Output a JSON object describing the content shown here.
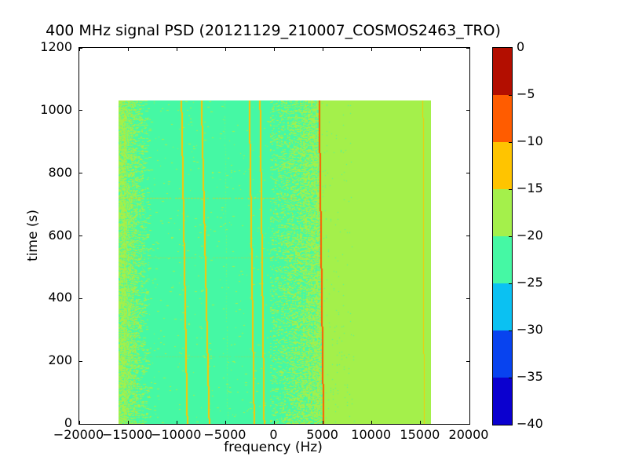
{
  "title": "400 MHz signal PSD (20121129_210007_COSMOS2463_TRO)",
  "chart_data": {
    "type": "heatmap",
    "subtype": "spectrogram",
    "title": "400 MHz signal PSD (20121129_210007_COSMOS2463_TRO)",
    "xlabel": "frequency (Hz)",
    "ylabel": "time (s)",
    "xlim": [
      -20000,
      20000
    ],
    "ylim": [
      0,
      1200
    ],
    "grid": false,
    "xticks": {
      "values": [
        -20000,
        -15000,
        -10000,
        -5000,
        0,
        5000,
        10000,
        15000,
        20000
      ],
      "labels": [
        "−20000",
        "−15000",
        "−10000",
        "−5000",
        "0",
        "5000",
        "10000",
        "15000",
        "20000"
      ]
    },
    "yticks": {
      "values": [
        0,
        200,
        400,
        600,
        800,
        1000,
        1200
      ],
      "labels": [
        "0",
        "200",
        "400",
        "600",
        "800",
        "1000",
        "1200"
      ]
    },
    "colorbar": {
      "position": "right",
      "tick_labels": [
        "0",
        "−5",
        "−10",
        "−15",
        "−20",
        "−25",
        "−30",
        "−35",
        "−40"
      ],
      "tick_values": [
        0,
        -5,
        -10,
        -15,
        -20,
        -25,
        -30,
        -35,
        -40
      ],
      "segment_colors": [
        "#b30e00",
        "#ff5c00",
        "#ffc400",
        "#a4f04b",
        "#45f8a4",
        "#0bc1f2",
        "#0843ef",
        "#0b00cf"
      ]
    },
    "data_extent": {
      "freq": [
        -16000,
        16000
      ],
      "time": [
        0,
        1032
      ]
    },
    "background": {
      "left_level_db": -22,
      "right_level_db": -17,
      "boundary_follows": "carrier-line"
    },
    "noise_bands": [
      {
        "name": "left-edge-band",
        "style": "solid",
        "f_from": -16000,
        "f_to": -15400,
        "level_db": -17,
        "gap_density": 0.18
      },
      {
        "name": "left-noise-band",
        "style": "streaks",
        "f_from": -15400,
        "f_to": -12700,
        "level_db": -17,
        "density_start": 0.92,
        "density_end": 0.04
      },
      {
        "name": "sparse-speckle",
        "style": "speckle",
        "f_from": -12700,
        "f_to": -500,
        "level_db": -17,
        "density_start": 0.012,
        "density_end": 0.012
      },
      {
        "name": "center-noise-band",
        "style": "speckle",
        "f_from": -500,
        "f_to": 5000,
        "level_db": -17,
        "density_start": 0.16,
        "density_end": 0.8,
        "bound_to_carrier": true,
        "amber_speck_density": 0.007
      }
    ],
    "right_edge_speckle": {
      "span_hz": 3000,
      "density": 0.03,
      "level_db": -22
    },
    "spectral_lines": [
      {
        "name": "faint-line--15200",
        "f_start": -15200,
        "f_end": -15450,
        "level_db": -10,
        "width": 1,
        "alpha": 0.45,
        "dash": true
      },
      {
        "name": "faint-line--14300",
        "f_start": -14300,
        "f_end": -14700,
        "level_db": -13,
        "width": 1,
        "alpha": 0.55,
        "dash": true
      },
      {
        "name": "faint-line--4900",
        "f_start": -4850,
        "f_end": -5150,
        "level_db": -17,
        "width": 1,
        "alpha": 0.55,
        "dash": true
      },
      {
        "name": "line--9000",
        "f_start": -8950,
        "f_end": -9550,
        "level_db": -13,
        "width": 2,
        "alpha": 1,
        "dash": false
      },
      {
        "name": "line--6700",
        "f_start": -6700,
        "f_end": -7500,
        "level_db": -13,
        "width": 2,
        "alpha": 1,
        "dash": false
      },
      {
        "name": "line--2100",
        "f_start": -2100,
        "f_end": -2600,
        "level_db": -13,
        "width": 2,
        "alpha": 1,
        "dash": false
      },
      {
        "name": "line--1100",
        "f_start": -1080,
        "f_end": -1500,
        "level_db": -13,
        "width": 2,
        "alpha": 1,
        "dash": false
      },
      {
        "name": "line-+15250",
        "f_start": 15260,
        "f_end": 15150,
        "level_db": -11,
        "width": 1,
        "alpha": 0.9,
        "dash": false
      },
      {
        "name": "carrier-line",
        "f_start": 5000,
        "f_end": 4550,
        "level_db": -8,
        "width": 2,
        "alpha": 1,
        "dash": false
      }
    ],
    "time_events": [
      {
        "name": "burst-722s",
        "t": 722,
        "level_db": -13,
        "alpha": 0.65
      },
      {
        "name": "burst-531s",
        "t": 531,
        "level_db": -13,
        "alpha": 0.32
      },
      {
        "name": "burst-215s",
        "t": 215,
        "level_db": -13,
        "alpha": 0.2
      }
    ]
  }
}
